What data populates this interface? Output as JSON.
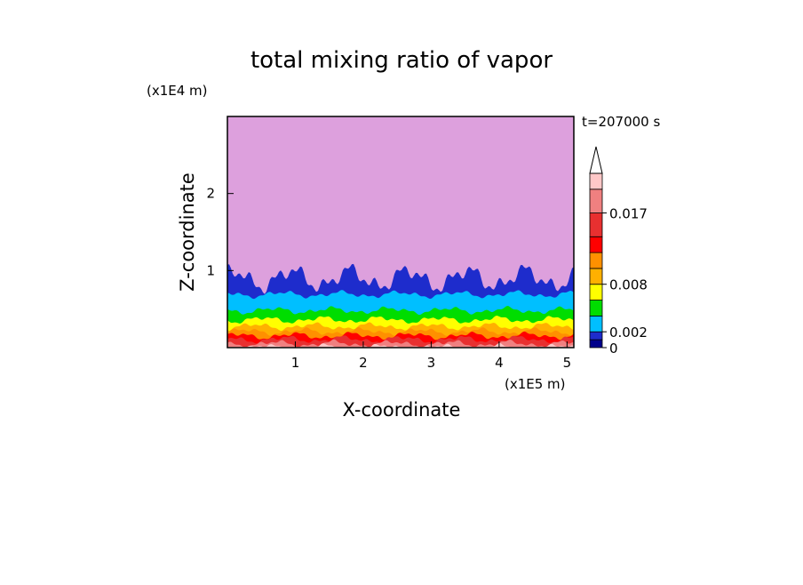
{
  "chart_data": {
    "type": "contour",
    "title": "total mixing ratio of vapor",
    "x_label": "X-coordinate",
    "y_label": "Z-coordinate",
    "x_unit": "(x1E5 m)",
    "y_unit": "(x1E4 m)",
    "time_label": "t=207000 s",
    "xlim": [
      0,
      5.1
    ],
    "ylim": [
      0,
      3
    ],
    "xticks": [
      1,
      2,
      3,
      4,
      5
    ],
    "yticks": [
      1,
      2
    ],
    "background_color": "#dda0dd",
    "colorbar": {
      "levels": [
        0,
        0.001,
        0.002,
        0.004,
        0.006,
        0.008,
        0.01,
        0.012,
        0.014,
        0.017,
        0.02,
        0.022
      ],
      "colors": [
        "#00008b",
        "#1e2ccc",
        "#00bfff",
        "#00dd00",
        "#ffff00",
        "#ffb000",
        "#ff9000",
        "#ff0000",
        "#e83030",
        "#f08080",
        "#ffc8c8"
      ],
      "ticks": [
        0,
        0.002,
        0.008,
        0.017
      ]
    }
  }
}
